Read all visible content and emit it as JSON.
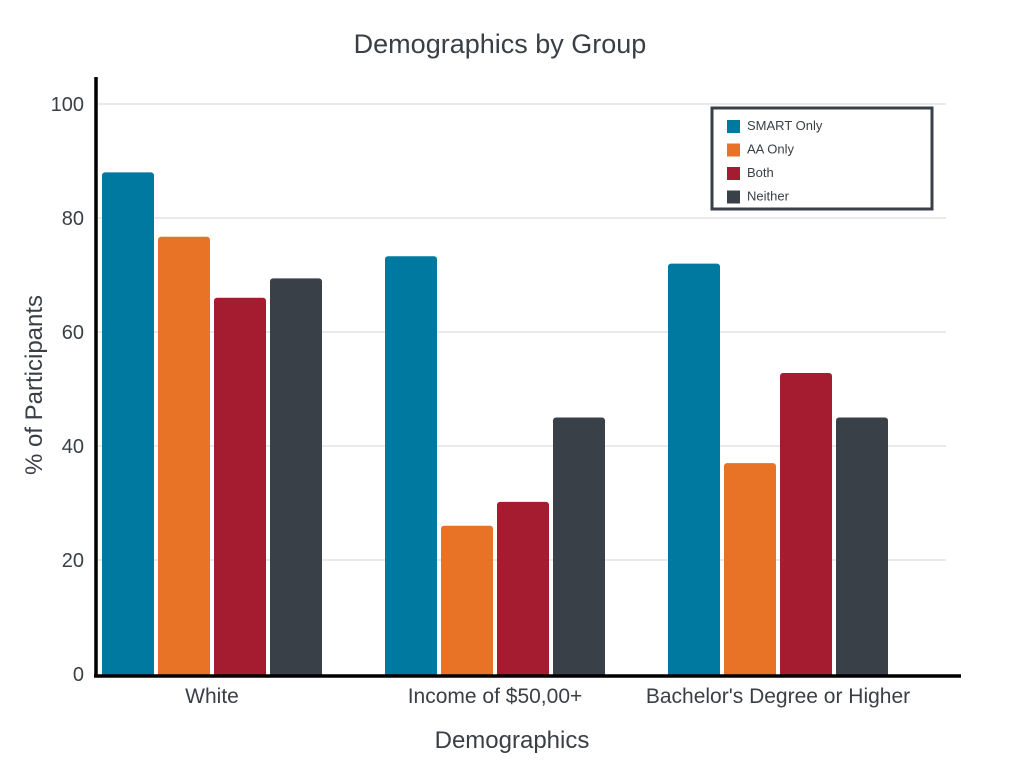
{
  "chart_data": {
    "type": "bar",
    "title": "Demographics by Group",
    "xlabel": "Demographics",
    "ylabel": "%  of Participants",
    "ylim": [
      0,
      100
    ],
    "yticks": [
      "0",
      "20",
      "40",
      "60",
      "80",
      "100"
    ],
    "grid": true,
    "legend_position": "top-right",
    "categories": [
      "White",
      "Income of $50,00+",
      "Bachelor's Degree or Higher"
    ],
    "series": [
      {
        "name": "SMART Only",
        "color": "#0079a1",
        "values": [
          88,
          73.3,
          72
        ]
      },
      {
        "name": "AA Only",
        "color": "#e87226",
        "values": [
          76.7,
          26,
          37
        ]
      },
      {
        "name": "Both",
        "color": "#a51c30",
        "values": [
          66,
          30.2,
          52.8
        ]
      },
      {
        "name": "Neither",
        "color": "#394047",
        "values": [
          69.4,
          45,
          45
        ]
      }
    ]
  }
}
